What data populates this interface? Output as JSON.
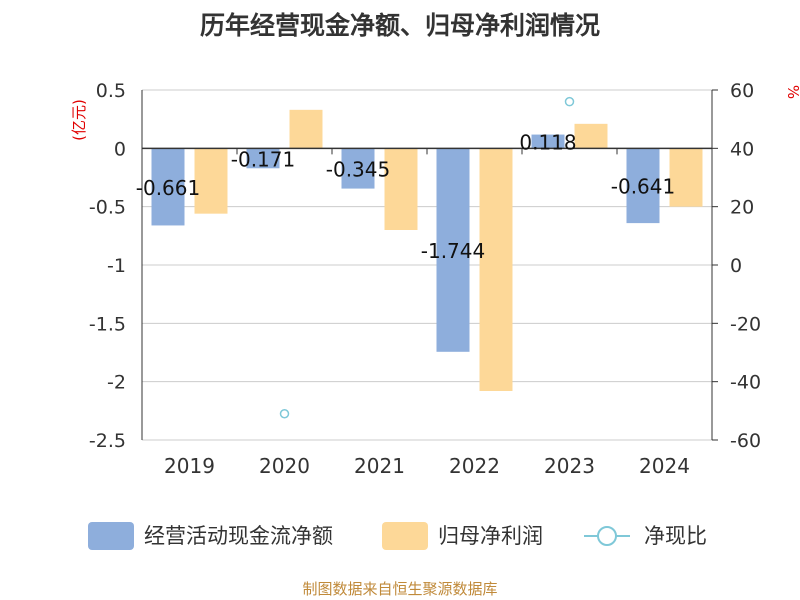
{
  "chart_data": {
    "type": "bar",
    "title": "历年经营现金净额、归母净利润情况",
    "categories": [
      "2019",
      "2020",
      "2021",
      "2022",
      "2023",
      "2024"
    ],
    "y_left_label": "(亿元)",
    "y_right_label": "%",
    "y_left_lim": [
      -2.5,
      0.5
    ],
    "y_left_ticks": [
      0.5,
      0,
      -0.5,
      -1,
      -1.5,
      -2,
      -2.5
    ],
    "y_left_tick_labels": [
      "0.5",
      "0",
      "-0.5",
      "-1",
      "-1.5",
      "-2",
      "-2.5"
    ],
    "y_right_lim": [
      -60,
      60
    ],
    "y_right_ticks": [
      60,
      40,
      20,
      0,
      -20,
      -40,
      -60
    ],
    "y_right_tick_labels": [
      "60",
      "40",
      "20",
      "0",
      "-20",
      "-40",
      "-60"
    ],
    "grid": true,
    "legend_position": "bottom",
    "series": [
      {
        "name": "经营活动现金流净额",
        "kind": "bar",
        "axis": "left",
        "color": "#8eaedc",
        "values": [
          -0.661,
          -0.171,
          -0.345,
          -1.744,
          0.118,
          -0.641
        ],
        "labels": [
          "-0.661",
          "-0.171",
          "-0.345",
          "-1.744",
          "0.118",
          "-0.641"
        ]
      },
      {
        "name": "归母净利润",
        "kind": "bar",
        "axis": "left",
        "color": "#fdd898",
        "values": [
          -0.56,
          0.33,
          -0.7,
          -2.08,
          0.21,
          -0.5
        ]
      },
      {
        "name": "净现比",
        "kind": "scatter",
        "axis": "right",
        "color": "#7fc8d8",
        "values": [
          null,
          -51,
          null,
          null,
          56,
          null
        ]
      }
    ]
  },
  "footer": "制图数据来自恒生聚源数据库"
}
